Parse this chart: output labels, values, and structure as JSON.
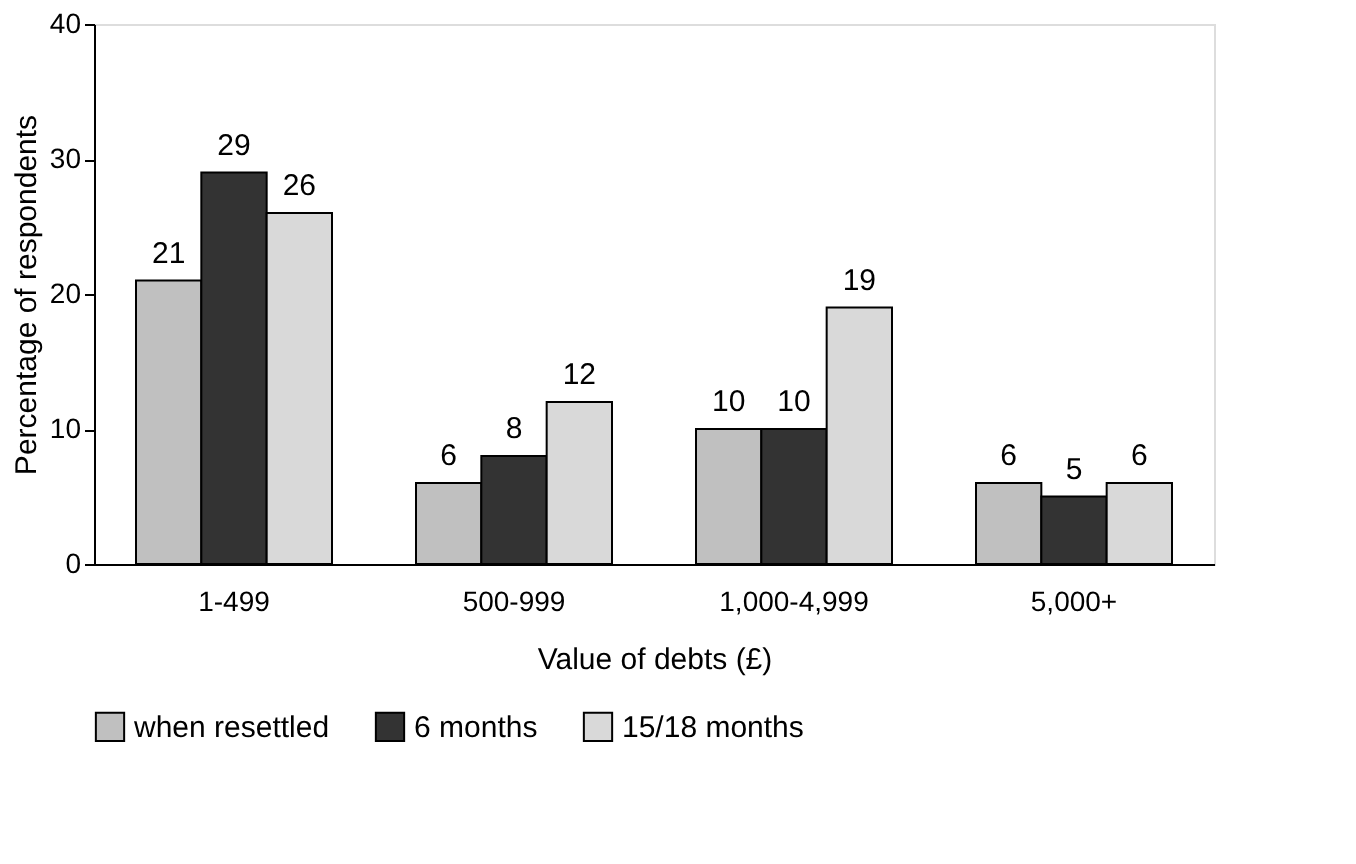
{
  "chart_data": {
    "type": "bar",
    "xlabel": "Value of debts (£)",
    "ylabel": "Percentage of respondents",
    "categories": [
      "1-499",
      "500-999",
      "1,000-4,999",
      "5,000+"
    ],
    "series": [
      {
        "name": "when resettled",
        "color": "#c0c0c0",
        "values": [
          21,
          6,
          10,
          6
        ]
      },
      {
        "name": "6 months",
        "color": "#333333",
        "values": [
          29,
          8,
          10,
          5
        ]
      },
      {
        "name": "15/18 months",
        "color": "#d9d9d9",
        "values": [
          26,
          12,
          19,
          6
        ]
      }
    ],
    "ylim": [
      0,
      40
    ],
    "yticks": [
      0,
      10,
      20,
      30,
      40
    ],
    "grid": false,
    "legend": "bottom",
    "data_labels": true
  }
}
